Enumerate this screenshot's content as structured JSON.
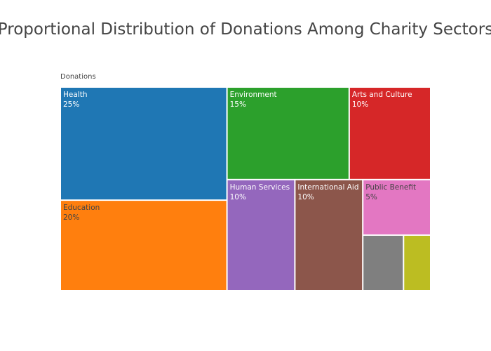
{
  "chart_data": {
    "type": "treemap",
    "title": "Proportional Distribution of Donations Among Charity Sectors",
    "root_label": "Donations",
    "items": [
      {
        "name": "Health",
        "value": 25,
        "label": "25%",
        "color": "#1f77b4",
        "text_color": "#ffffff"
      },
      {
        "name": "Education",
        "value": 20,
        "label": "20%",
        "color": "#ff7f0e",
        "text_color": "#444444"
      },
      {
        "name": "Environment",
        "value": 15,
        "label": "15%",
        "color": "#2ca02c",
        "text_color": "#ffffff"
      },
      {
        "name": "Arts and Culture",
        "value": 10,
        "label": "10%",
        "color": "#d62728",
        "text_color": "#ffffff"
      },
      {
        "name": "Human Services",
        "value": 10,
        "label": "10%",
        "color": "#9467bd",
        "text_color": "#ffffff"
      },
      {
        "name": "International Aid",
        "value": 10,
        "label": "10%",
        "color": "#8c564b",
        "text_color": "#ffffff"
      },
      {
        "name": "Public Benefit",
        "value": 5,
        "label": "5%",
        "color": "#e377c2",
        "text_color": "#444444"
      },
      {
        "name": "",
        "value": 3,
        "label": "",
        "color": "#7f7f7f",
        "text_color": "#ffffff"
      },
      {
        "name": "",
        "value": 2,
        "label": "",
        "color": "#bcbd22",
        "text_color": "#444444"
      }
    ]
  }
}
